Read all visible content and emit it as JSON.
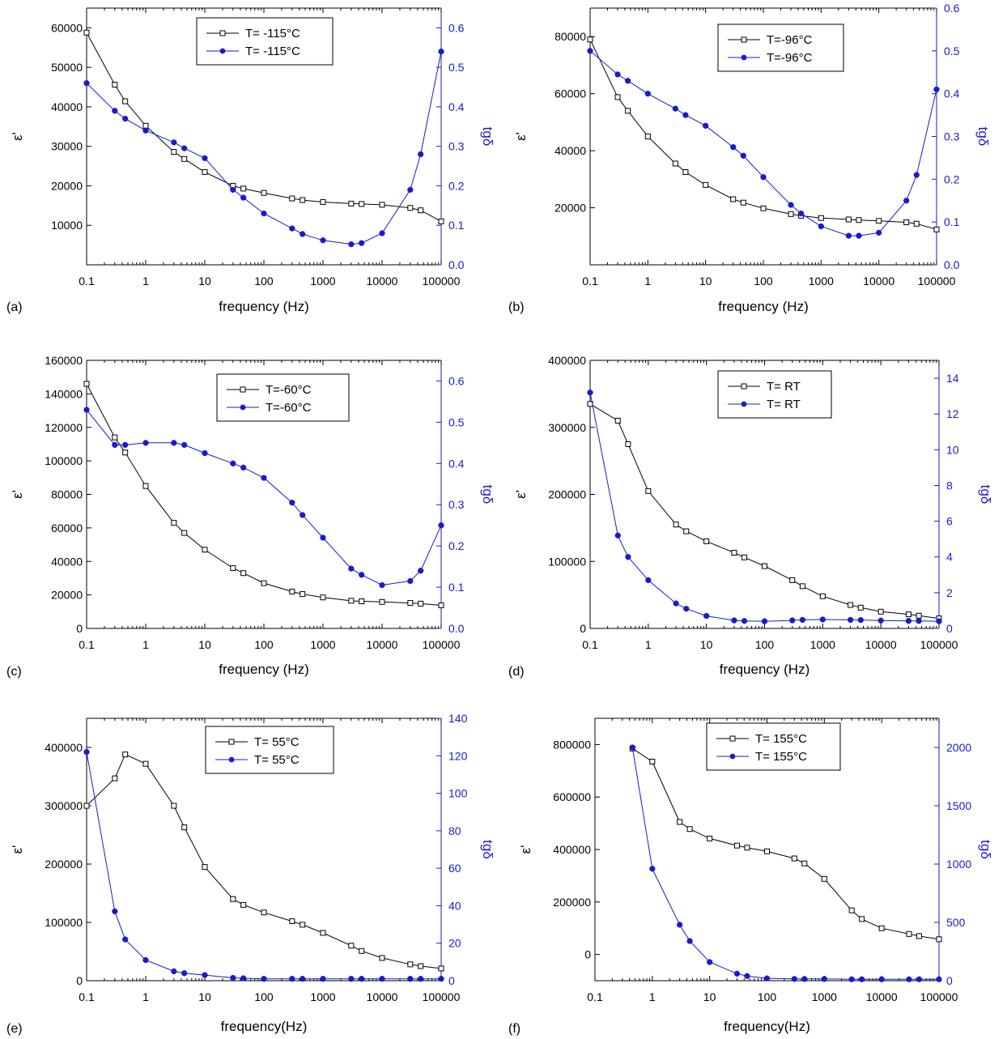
{
  "colors": {
    "left": "#000000",
    "right": "#1a1acc",
    "legend_border": "#000000"
  },
  "chart_data": [
    {
      "type": "line",
      "panel_label": "(a)",
      "xlabel": "frequency (Hz)",
      "ylabel_left": "ε'",
      "ylabel_right": "tgδ",
      "x_scale": "log",
      "xlim": [
        0.1,
        100000
      ],
      "x_ticks": [
        0.1,
        1,
        10,
        100,
        1000,
        10000,
        100000
      ],
      "x_tick_labels": [
        "0.1",
        "1",
        "10",
        "100",
        "1000",
        "10000",
        "100000"
      ],
      "ylim_left": [
        0,
        65000
      ],
      "y_ticks_left": [
        10000,
        20000,
        30000,
        40000,
        50000,
        60000
      ],
      "y_tick_labels_left": [
        "10000",
        "20000",
        "30000",
        "40000",
        "50000",
        "60000"
      ],
      "ylim_right": [
        0,
        0.65
      ],
      "y_ticks_right": [
        0,
        0.1,
        0.2,
        0.3,
        0.4,
        0.5,
        0.6
      ],
      "y_tick_labels_right": [
        "0.0",
        "0.1",
        "0.2",
        "0.3",
        "0.4",
        "0.5",
        "0.6"
      ],
      "legend_position": "top-center",
      "series": [
        {
          "name": "T= -115°C",
          "axis": "left",
          "marker": "open-square",
          "x": [
            0.1,
            0.3,
            0.45,
            1,
            3,
            4.5,
            10,
            30,
            45,
            100,
            300,
            450,
            1000,
            3000,
            4500,
            10000,
            30000,
            45000,
            100000
          ],
          "y": [
            58800,
            45600,
            41400,
            35200,
            28600,
            26800,
            23500,
            20000,
            19300,
            18200,
            16800,
            16400,
            15900,
            15500,
            15400,
            15200,
            14400,
            13800,
            11000
          ]
        },
        {
          "name": "T= -115°C",
          "axis": "right",
          "marker": "filled-circle",
          "x": [
            0.1,
            0.3,
            0.45,
            1,
            3,
            4.5,
            10,
            30,
            45,
            100,
            300,
            450,
            1000,
            3000,
            4500,
            10000,
            30000,
            45000,
            100000
          ],
          "y": [
            0.46,
            0.39,
            0.37,
            0.34,
            0.31,
            0.295,
            0.27,
            0.19,
            0.17,
            0.13,
            0.092,
            0.078,
            0.062,
            0.052,
            0.055,
            0.08,
            0.19,
            0.28,
            0.54
          ]
        }
      ]
    },
    {
      "type": "line",
      "panel_label": "(b)",
      "xlabel": "frequency (Hz)",
      "ylabel_left": "ε'",
      "ylabel_right": "tgδ",
      "x_scale": "log",
      "xlim": [
        0.1,
        100000
      ],
      "x_ticks": [
        0.1,
        1,
        10,
        100,
        1000,
        10000,
        100000
      ],
      "x_tick_labels": [
        "0.1",
        "1",
        "10",
        "100",
        "1000",
        "10000",
        "100000"
      ],
      "ylim_left": [
        0,
        90000
      ],
      "y_ticks_left": [
        20000,
        40000,
        60000,
        80000
      ],
      "y_tick_labels_left": [
        "20000",
        "40000",
        "60000",
        "80000"
      ],
      "ylim_right": [
        0,
        0.6
      ],
      "y_ticks_right": [
        0,
        0.1,
        0.2,
        0.3,
        0.4,
        0.5,
        0.6
      ],
      "y_tick_labels_right": [
        "0.0",
        "0.1",
        "0.2",
        "0.3",
        "0.4",
        "0.5",
        "0.6"
      ],
      "legend_position": "top-center",
      "series": [
        {
          "name": "T=-96°C",
          "axis": "left",
          "marker": "open-square",
          "x": [
            0.1,
            0.3,
            0.45,
            1,
            3,
            4.5,
            10,
            30,
            45,
            100,
            300,
            450,
            1000,
            3000,
            4500,
            10000,
            30000,
            45000,
            100000
          ],
          "y": [
            79000,
            58800,
            54000,
            45000,
            35500,
            32500,
            28000,
            23000,
            21800,
            19800,
            17800,
            17200,
            16400,
            15900,
            15700,
            15400,
            14900,
            14400,
            12400
          ]
        },
        {
          "name": "T=-96°C",
          "axis": "right",
          "marker": "filled-circle",
          "x": [
            0.1,
            0.3,
            0.45,
            1,
            3,
            4.5,
            10,
            30,
            45,
            100,
            300,
            450,
            1000,
            3000,
            4500,
            10000,
            30000,
            45000,
            100000
          ],
          "y": [
            0.5,
            0.445,
            0.43,
            0.4,
            0.365,
            0.35,
            0.325,
            0.275,
            0.255,
            0.205,
            0.14,
            0.12,
            0.09,
            0.068,
            0.068,
            0.075,
            0.15,
            0.21,
            0.41
          ]
        }
      ]
    },
    {
      "type": "line",
      "panel_label": "(c)",
      "xlabel": "frequency (Hz)",
      "ylabel_left": "ε'",
      "ylabel_right": "tgδ",
      "x_scale": "log",
      "xlim": [
        0.1,
        100000
      ],
      "x_ticks": [
        0.1,
        1,
        10,
        100,
        1000,
        10000,
        100000
      ],
      "x_tick_labels": [
        "0.1",
        "1",
        "10",
        "100",
        "1000",
        "10000",
        "100000"
      ],
      "ylim_left": [
        0,
        160000
      ],
      "y_ticks_left": [
        0,
        20000,
        40000,
        60000,
        80000,
        100000,
        120000,
        140000,
        160000
      ],
      "y_tick_labels_left": [
        "0",
        "20000",
        "40000",
        "60000",
        "80000",
        "100000",
        "120000",
        "140000",
        "160000"
      ],
      "ylim_right": [
        0,
        0.65
      ],
      "y_ticks_right": [
        0,
        0.1,
        0.2,
        0.3,
        0.4,
        0.5,
        0.6
      ],
      "y_tick_labels_right": [
        "0.0",
        "0.1",
        "0.2",
        "0.3",
        "0.4",
        "0.5",
        "0.6"
      ],
      "legend_position": "top-center",
      "series": [
        {
          "name": "T=-60°C",
          "axis": "left",
          "marker": "open-square",
          "x": [
            0.1,
            0.3,
            0.45,
            1,
            3,
            4.5,
            10,
            30,
            45,
            100,
            300,
            450,
            1000,
            3000,
            4500,
            10000,
            30000,
            45000,
            100000
          ],
          "y": [
            146000,
            114000,
            105000,
            85000,
            63000,
            57000,
            47000,
            36000,
            33000,
            27000,
            22000,
            20500,
            18500,
            16500,
            16200,
            15800,
            15200,
            14800,
            13800
          ]
        },
        {
          "name": "T=-60°C",
          "axis": "right",
          "marker": "filled-circle",
          "x": [
            0.1,
            0.3,
            0.45,
            1,
            3,
            4.5,
            10,
            30,
            45,
            100,
            300,
            450,
            1000,
            3000,
            4500,
            10000,
            30000,
            45000,
            100000
          ],
          "y": [
            0.53,
            0.445,
            0.445,
            0.45,
            0.45,
            0.445,
            0.425,
            0.4,
            0.39,
            0.365,
            0.305,
            0.275,
            0.22,
            0.145,
            0.13,
            0.105,
            0.115,
            0.14,
            0.25
          ]
        }
      ]
    },
    {
      "type": "line",
      "panel_label": "(d)",
      "xlabel": "frequency (Hz)",
      "ylabel_left": "ε'",
      "ylabel_right": "tgδ",
      "x_scale": "log",
      "xlim": [
        0.1,
        100000
      ],
      "x_ticks": [
        0.1,
        1,
        10,
        100,
        1000,
        10000,
        100000
      ],
      "x_tick_labels": [
        "0.1",
        "1",
        "10",
        "100",
        "1000",
        "10000",
        "100000"
      ],
      "ylim_left": [
        0,
        400000
      ],
      "y_ticks_left": [
        0,
        100000,
        200000,
        300000,
        400000
      ],
      "y_tick_labels_left": [
        "0",
        "100000",
        "200000",
        "300000",
        "400000"
      ],
      "ylim_right": [
        0,
        15
      ],
      "y_ticks_right": [
        0,
        2,
        4,
        6,
        8,
        10,
        12,
        14
      ],
      "y_tick_labels_right": [
        "0",
        "2",
        "4",
        "6",
        "8",
        "10",
        "12",
        "14"
      ],
      "legend_position": "top-center",
      "series": [
        {
          "name": "T= RT",
          "axis": "left",
          "marker": "open-square",
          "x": [
            0.1,
            0.3,
            0.45,
            1,
            3,
            4.5,
            10,
            30,
            45,
            100,
            300,
            450,
            1000,
            3000,
            4500,
            10000,
            30000,
            45000,
            100000
          ],
          "y": [
            335000,
            310000,
            275000,
            205000,
            155000,
            145000,
            130000,
            113000,
            106000,
            93000,
            72000,
            63000,
            48000,
            35000,
            31000,
            25000,
            21000,
            19000,
            15000
          ]
        },
        {
          "name": "T= RT",
          "axis": "right",
          "marker": "filled-circle",
          "x": [
            0.1,
            0.3,
            0.45,
            1,
            3,
            4.5,
            10,
            30,
            45,
            100,
            300,
            450,
            1000,
            3000,
            4500,
            10000,
            30000,
            45000,
            100000
          ],
          "y": [
            13.2,
            5.2,
            4.0,
            2.7,
            1.4,
            1.1,
            0.7,
            0.45,
            0.42,
            0.4,
            0.45,
            0.48,
            0.5,
            0.48,
            0.47,
            0.44,
            0.42,
            0.42,
            0.4
          ]
        }
      ]
    },
    {
      "type": "line",
      "panel_label": "(e)",
      "xlabel": "frequency(Hz)",
      "ylabel_left": "ε'",
      "ylabel_right": "tgδ",
      "x_scale": "log",
      "xlim": [
        0.1,
        100000
      ],
      "x_ticks": [
        0.1,
        1,
        10,
        100,
        1000,
        10000,
        100000
      ],
      "x_tick_labels": [
        "0.1",
        "1",
        "10",
        "100",
        "1000",
        "10000",
        "100000"
      ],
      "ylim_left": [
        0,
        450000
      ],
      "y_ticks_left": [
        0,
        100000,
        200000,
        300000,
        400000
      ],
      "y_tick_labels_left": [
        "0",
        "100000",
        "200000",
        "300000",
        "400000"
      ],
      "ylim_right": [
        0,
        140
      ],
      "y_ticks_right": [
        0,
        20,
        40,
        60,
        80,
        100,
        120,
        140
      ],
      "y_tick_labels_right": [
        "0",
        "20",
        "40",
        "60",
        "80",
        "100",
        "120",
        "140"
      ],
      "legend_position": "top-center",
      "series": [
        {
          "name": "T= 55°C",
          "axis": "left",
          "marker": "open-square",
          "x": [
            0.1,
            0.3,
            0.45,
            1,
            3,
            4.5,
            10,
            30,
            45,
            100,
            300,
            450,
            1000,
            3000,
            4500,
            10000,
            30000,
            45000,
            100000
          ],
          "y": [
            300000,
            347000,
            388000,
            372000,
            300000,
            263000,
            195000,
            140000,
            130000,
            117000,
            102000,
            96000,
            82000,
            60000,
            51000,
            39000,
            28000,
            25000,
            21000
          ]
        },
        {
          "name": "T= 55°C",
          "axis": "right",
          "marker": "filled-circle",
          "x": [
            0.1,
            0.3,
            0.45,
            1,
            3,
            4.5,
            10,
            30,
            45,
            100,
            300,
            450,
            1000,
            3000,
            4500,
            10000,
            30000,
            45000,
            100000
          ],
          "y": [
            122,
            37,
            22,
            11,
            5,
            4,
            3,
            1.5,
            1.3,
            1,
            1,
            1,
            1,
            1,
            1,
            1,
            1,
            1,
            1
          ]
        }
      ]
    },
    {
      "type": "line",
      "panel_label": "(f)",
      "xlabel": "frequency(Hz)",
      "ylabel_left": "ε'",
      "ylabel_right": "tgδ",
      "x_scale": "log",
      "xlim": [
        0.1,
        100000
      ],
      "x_ticks": [
        0.1,
        1,
        10,
        100,
        1000,
        10000,
        100000
      ],
      "x_tick_labels": [
        "0.1",
        "1",
        "10",
        "100",
        "1000",
        "10000",
        "100000"
      ],
      "ylim_left": [
        -100000,
        900000
      ],
      "y_ticks_left": [
        0,
        200000,
        400000,
        600000,
        800000
      ],
      "y_tick_labels_left": [
        "0",
        "200000",
        "400000",
        "600000",
        "800000"
      ],
      "ylim_right": [
        0,
        2250
      ],
      "y_ticks_right": [
        0,
        500,
        1000,
        1500,
        2000
      ],
      "y_tick_labels_right": [
        "0",
        "500",
        "1000",
        "1500",
        "2000"
      ],
      "legend_position": "top-center",
      "series": [
        {
          "name": "T= 155°C",
          "axis": "left",
          "marker": "open-square",
          "x": [
            0.45,
            1,
            3,
            4.5,
            10,
            30,
            45,
            100,
            300,
            450,
            1000,
            3000,
            4500,
            10000,
            30000,
            45000,
            100000
          ],
          "y": [
            785000,
            735000,
            505000,
            478000,
            442000,
            415000,
            407000,
            393000,
            366000,
            347000,
            288000,
            168000,
            135000,
            100000,
            78000,
            70000,
            58000
          ]
        },
        {
          "name": "T= 155°C",
          "axis": "right",
          "marker": "filled-circle",
          "x": [
            0.45,
            1,
            3,
            4.5,
            10,
            30,
            45,
            100,
            300,
            450,
            1000,
            3000,
            4500,
            10000,
            30000,
            45000,
            100000
          ],
          "y": [
            2000,
            960,
            480,
            340,
            160,
            60,
            40,
            20,
            15,
            15,
            15,
            12,
            12,
            12,
            12,
            12,
            12
          ]
        }
      ]
    }
  ]
}
